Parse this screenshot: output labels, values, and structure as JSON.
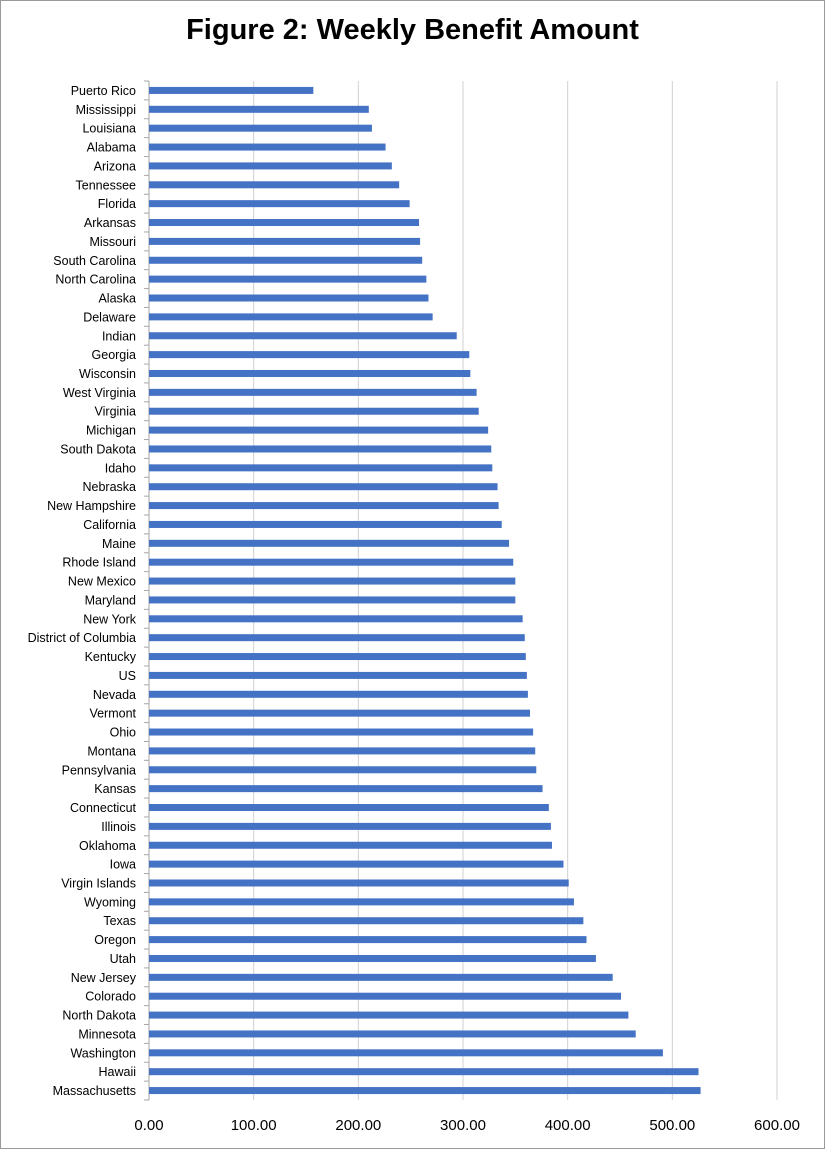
{
  "chart_data": {
    "type": "bar",
    "orientation": "horizontal",
    "title": "Figure 2: Weekly Benefit Amount",
    "xlabel": "",
    "ylabel": "",
    "xlim": [
      0,
      600
    ],
    "xticks": [
      0,
      100,
      200,
      300,
      400,
      500,
      600
    ],
    "xtick_labels": [
      "0.00",
      "100.00",
      "200.00",
      "300.00",
      "400.00",
      "500.00",
      "600.00"
    ],
    "grid": true,
    "legend": "none",
    "bar_color": "#4472c4",
    "categories": [
      "Puerto Rico",
      "Mississippi",
      "Louisiana",
      "Alabama",
      "Arizona",
      "Tennessee",
      "Florida",
      "Arkansas",
      "Missouri",
      "South Carolina",
      "North Carolina",
      "Alaska",
      "Delaware",
      "Indian",
      "Georgia",
      "Wisconsin",
      "West Virginia",
      "Virginia",
      "Michigan",
      "South Dakota",
      "Idaho",
      "Nebraska",
      "New Hampshire",
      "California",
      "Maine",
      "Rhode Island",
      "New Mexico",
      "Maryland",
      "New York",
      "District of Columbia",
      "Kentucky",
      "US",
      "Nevada",
      "Vermont",
      "Ohio",
      "Montana",
      "Pennsylvania",
      "Kansas",
      "Connecticut",
      "Illinois",
      "Oklahoma",
      "Iowa",
      "Virgin Islands",
      "Wyoming",
      "Texas",
      "Oregon",
      "Utah",
      "New Jersey",
      "Colorado",
      "North Dakota",
      "Minnesota",
      "Washington",
      "Hawaii",
      "Massachusetts"
    ],
    "values": [
      157,
      210,
      213,
      226,
      232,
      239,
      249,
      258,
      259,
      261,
      265,
      267,
      271,
      294,
      306,
      307,
      313,
      315,
      324,
      327,
      328,
      333,
      334,
      337,
      344,
      348,
      350,
      350,
      357,
      359,
      360,
      361,
      362,
      364,
      367,
      369,
      370,
      376,
      382,
      384,
      385,
      396,
      401,
      406,
      415,
      418,
      427,
      443,
      451,
      458,
      465,
      491,
      525,
      527
    ]
  }
}
